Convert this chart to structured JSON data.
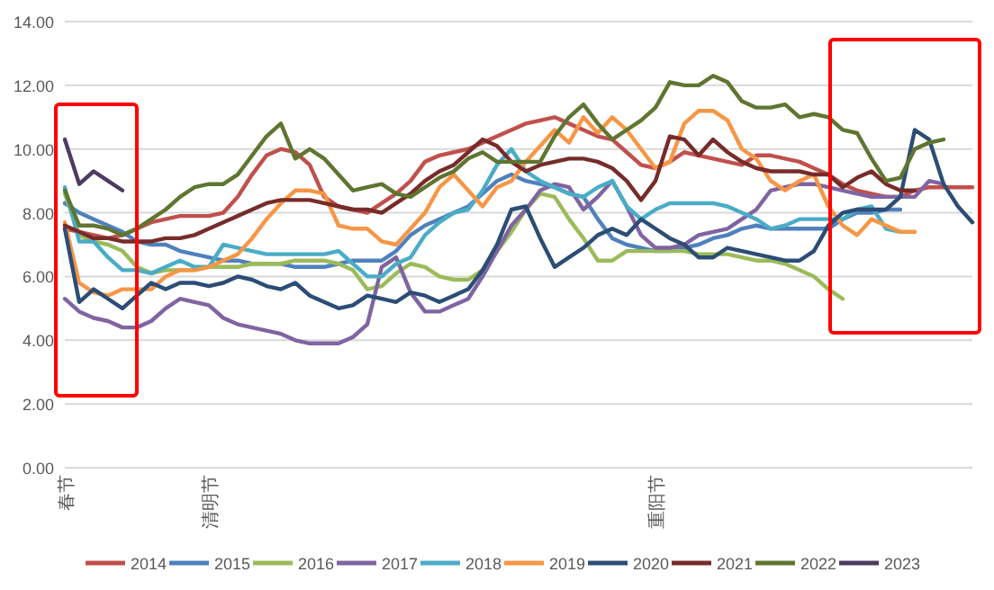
{
  "chart_data": {
    "type": "line",
    "categories": [
      "春节",
      null,
      null,
      null,
      null,
      null,
      null,
      null,
      null,
      null,
      "清明节",
      null,
      null,
      null,
      null,
      null,
      null,
      null,
      null,
      null,
      null,
      null,
      null,
      null,
      null,
      null,
      null,
      null,
      null,
      null,
      null,
      null,
      null,
      null,
      null,
      null,
      null,
      null,
      null,
      null,
      null,
      "重阳节",
      null,
      null,
      null,
      null,
      null,
      null,
      null,
      null,
      null,
      null,
      null,
      null,
      null,
      null,
      null,
      null,
      null,
      null,
      null,
      null,
      null,
      null
    ],
    "ylim": [
      0,
      14
    ],
    "yticks": [
      {
        "value": 0,
        "label": "0.00"
      },
      {
        "value": 2,
        "label": "2.00"
      },
      {
        "value": 4,
        "label": "4.00"
      },
      {
        "value": 6,
        "label": "6.00"
      },
      {
        "value": 8,
        "label": "8.00"
      },
      {
        "value": 10,
        "label": "10.00"
      },
      {
        "value": 12,
        "label": "12.00"
      },
      {
        "value": 14,
        "label": "14.00"
      }
    ],
    "grid": "y",
    "legend": "bottom",
    "marker": "none",
    "line_style": "solid",
    "series": [
      {
        "name": "2014",
        "color": "#c0504d",
        "values": [
          7.5,
          7.4,
          7.3,
          7.2,
          7.3,
          7.5,
          7.7,
          7.8,
          7.9,
          7.9,
          7.9,
          8.0,
          8.5,
          9.2,
          9.8,
          10.0,
          9.9,
          9.5,
          8.5,
          8.2,
          8.1,
          8.0,
          8.3,
          8.6,
          9.0,
          9.6,
          9.8,
          9.9,
          10.0,
          10.2,
          10.4,
          10.6,
          10.8,
          10.9,
          11.0,
          10.8,
          10.6,
          10.4,
          10.3,
          9.9,
          9.5,
          9.4,
          9.6,
          9.9,
          9.8,
          9.7,
          9.6,
          9.5,
          9.8,
          9.8,
          9.7,
          9.6,
          9.4,
          9.2,
          8.9,
          8.7,
          8.6,
          8.5,
          8.5,
          8.7,
          8.8,
          8.8,
          8.8,
          8.8
        ]
      },
      {
        "name": "2015",
        "color": "#4f81bd",
        "values": [
          8.3,
          8.0,
          7.8,
          7.6,
          7.4,
          7.1,
          7.0,
          7.0,
          6.8,
          6.7,
          6.6,
          6.5,
          6.5,
          6.4,
          6.4,
          6.4,
          6.3,
          6.3,
          6.3,
          6.4,
          6.5,
          6.5,
          6.5,
          6.8,
          7.3,
          7.6,
          7.8,
          8.0,
          8.2,
          8.6,
          9.0,
          9.2,
          9.0,
          8.9,
          8.8,
          8.6,
          8.5,
          7.8,
          7.2,
          7.0,
          6.9,
          6.8,
          6.8,
          6.9,
          7.0,
          7.2,
          7.3,
          7.5,
          7.6,
          7.5,
          7.5,
          7.5,
          7.5,
          7.5,
          7.8,
          8.0,
          8.0,
          8.1,
          8.1,
          null,
          null,
          null,
          null,
          null
        ]
      },
      {
        "name": "2016",
        "color": "#9bbb59",
        "values": [
          8.6,
          7.3,
          7.1,
          7.0,
          6.8,
          6.3,
          6.1,
          6.2,
          6.2,
          6.2,
          6.3,
          6.3,
          6.3,
          6.4,
          6.4,
          6.4,
          6.5,
          6.5,
          6.5,
          6.4,
          6.2,
          5.6,
          5.7,
          6.1,
          6.4,
          6.3,
          6.0,
          5.9,
          5.9,
          6.2,
          6.8,
          7.4,
          8.1,
          8.6,
          8.5,
          7.8,
          7.2,
          6.5,
          6.5,
          6.8,
          6.8,
          6.8,
          6.8,
          6.8,
          6.7,
          6.7,
          6.7,
          6.6,
          6.5,
          6.5,
          6.4,
          6.2,
          6.0,
          5.6,
          5.3,
          null,
          null,
          null,
          null,
          null,
          null,
          null,
          null,
          null
        ]
      },
      {
        "name": "2017",
        "color": "#8064a2",
        "values": [
          5.3,
          4.9,
          4.7,
          4.6,
          4.4,
          4.4,
          4.6,
          5.0,
          5.3,
          5.2,
          5.1,
          4.7,
          4.5,
          4.4,
          4.3,
          4.2,
          4.0,
          3.9,
          3.9,
          3.9,
          4.1,
          4.5,
          6.3,
          6.6,
          5.5,
          4.9,
          4.9,
          5.1,
          5.3,
          6.0,
          6.8,
          7.6,
          8.1,
          8.7,
          8.9,
          8.8,
          8.1,
          8.5,
          9.0,
          8.2,
          7.3,
          6.9,
          6.9,
          7.0,
          7.3,
          7.4,
          7.5,
          7.8,
          8.1,
          8.7,
          8.8,
          8.9,
          8.9,
          8.8,
          8.7,
          8.6,
          8.5,
          8.5,
          8.5,
          8.5,
          9.0,
          8.9,
          null,
          null
        ]
      },
      {
        "name": "2018",
        "color": "#4bacc6",
        "values": [
          8.8,
          7.1,
          7.1,
          6.6,
          6.2,
          6.2,
          6.1,
          6.3,
          6.5,
          6.3,
          6.3,
          7.0,
          6.9,
          6.8,
          6.7,
          6.7,
          6.7,
          6.7,
          6.7,
          6.8,
          6.4,
          6.0,
          6.0,
          6.4,
          6.6,
          7.3,
          7.7,
          8.0,
          8.1,
          8.7,
          9.5,
          10.0,
          9.3,
          9.0,
          8.8,
          8.6,
          8.5,
          8.8,
          9.0,
          8.2,
          7.8,
          8.1,
          8.3,
          8.3,
          8.3,
          8.3,
          8.2,
          8.0,
          7.8,
          7.5,
          7.6,
          7.8,
          7.8,
          7.8,
          7.8,
          8.1,
          8.2,
          7.5,
          7.4,
          null,
          null,
          null,
          null,
          null
        ]
      },
      {
        "name": "2019",
        "color": "#f79646",
        "values": [
          7.7,
          5.8,
          5.5,
          5.4,
          5.6,
          5.6,
          5.6,
          6.0,
          6.2,
          6.2,
          6.3,
          6.5,
          6.7,
          7.2,
          7.8,
          8.3,
          8.7,
          8.7,
          8.6,
          7.6,
          7.5,
          7.5,
          7.1,
          7.0,
          7.5,
          8.0,
          8.8,
          9.2,
          8.7,
          8.2,
          8.8,
          9.0,
          9.6,
          10.1,
          10.6,
          10.2,
          11.0,
          10.5,
          11.0,
          10.6,
          10.0,
          9.4,
          9.6,
          10.8,
          11.2,
          11.2,
          10.9,
          10.0,
          9.7,
          9.0,
          8.7,
          9.0,
          9.2,
          8.2,
          7.6,
          7.3,
          7.8,
          7.6,
          7.4,
          7.4,
          null,
          null,
          null,
          null
        ]
      },
      {
        "name": "2020",
        "color": "#2c4d75",
        "values": [
          7.5,
          5.2,
          5.6,
          5.3,
          5.0,
          5.4,
          5.8,
          5.6,
          5.8,
          5.8,
          5.7,
          5.8,
          6.0,
          5.9,
          5.7,
          5.6,
          5.8,
          5.4,
          5.2,
          5.0,
          5.1,
          5.4,
          5.3,
          5.2,
          5.5,
          5.4,
          5.2,
          5.4,
          5.6,
          6.2,
          7.0,
          8.1,
          8.2,
          7.2,
          6.3,
          6.6,
          6.9,
          7.3,
          7.5,
          7.3,
          7.8,
          7.5,
          7.2,
          7.0,
          6.6,
          6.6,
          6.9,
          6.8,
          6.7,
          6.6,
          6.5,
          6.5,
          6.8,
          7.6,
          8.0,
          8.1,
          8.1,
          8.1,
          8.5,
          10.6,
          10.3,
          8.9,
          8.2,
          7.7
        ]
      },
      {
        "name": "2021",
        "color": "#772c2a",
        "values": [
          7.6,
          7.4,
          7.2,
          7.2,
          7.1,
          7.1,
          7.1,
          7.2,
          7.2,
          7.3,
          7.5,
          7.7,
          7.9,
          8.1,
          8.3,
          8.4,
          8.4,
          8.4,
          8.3,
          8.2,
          8.1,
          8.1,
          8.0,
          8.3,
          8.6,
          9.0,
          9.3,
          9.5,
          9.9,
          10.3,
          10.1,
          9.6,
          9.3,
          9.5,
          9.6,
          9.7,
          9.7,
          9.6,
          9.4,
          9.0,
          8.4,
          9.0,
          10.4,
          10.3,
          9.8,
          10.3,
          9.9,
          9.6,
          9.4,
          9.3,
          9.3,
          9.3,
          9.2,
          9.2,
          8.8,
          9.1,
          9.3,
          8.9,
          8.7,
          8.7,
          null,
          null,
          null,
          null
        ]
      },
      {
        "name": "2022",
        "color": "#5f7530",
        "values": [
          8.7,
          7.6,
          7.6,
          7.5,
          7.3,
          7.5,
          7.8,
          8.1,
          8.5,
          8.8,
          8.9,
          8.9,
          9.2,
          9.8,
          10.4,
          10.8,
          9.7,
          10.0,
          9.7,
          9.2,
          8.7,
          8.8,
          8.9,
          8.6,
          8.5,
          8.8,
          9.1,
          9.3,
          9.7,
          9.9,
          9.6,
          9.6,
          9.6,
          9.6,
          10.4,
          11.0,
          11.4,
          10.8,
          10.3,
          10.6,
          10.9,
          11.3,
          12.1,
          12.0,
          12.0,
          12.3,
          12.1,
          11.5,
          11.3,
          11.3,
          11.4,
          11.0,
          11.1,
          11.0,
          10.6,
          10.5,
          9.7,
          9.0,
          9.1,
          10.0,
          10.2,
          10.3,
          null,
          null
        ]
      },
      {
        "name": "2023",
        "color": "#4d3b62",
        "values": [
          10.3,
          8.9,
          9.3,
          9.0,
          8.7,
          null,
          null,
          null,
          null,
          null,
          null,
          null,
          null,
          null,
          null,
          null,
          null,
          null,
          null,
          null,
          null,
          null,
          null,
          null,
          null,
          null,
          null,
          null,
          null,
          null,
          null,
          null,
          null,
          null,
          null,
          null,
          null,
          null,
          null,
          null,
          null,
          null,
          null,
          null,
          null,
          null,
          null,
          null,
          null,
          null,
          null,
          null,
          null,
          null,
          null,
          null,
          null,
          null,
          null,
          null,
          null,
          null,
          null,
          null
        ]
      }
    ]
  }
}
